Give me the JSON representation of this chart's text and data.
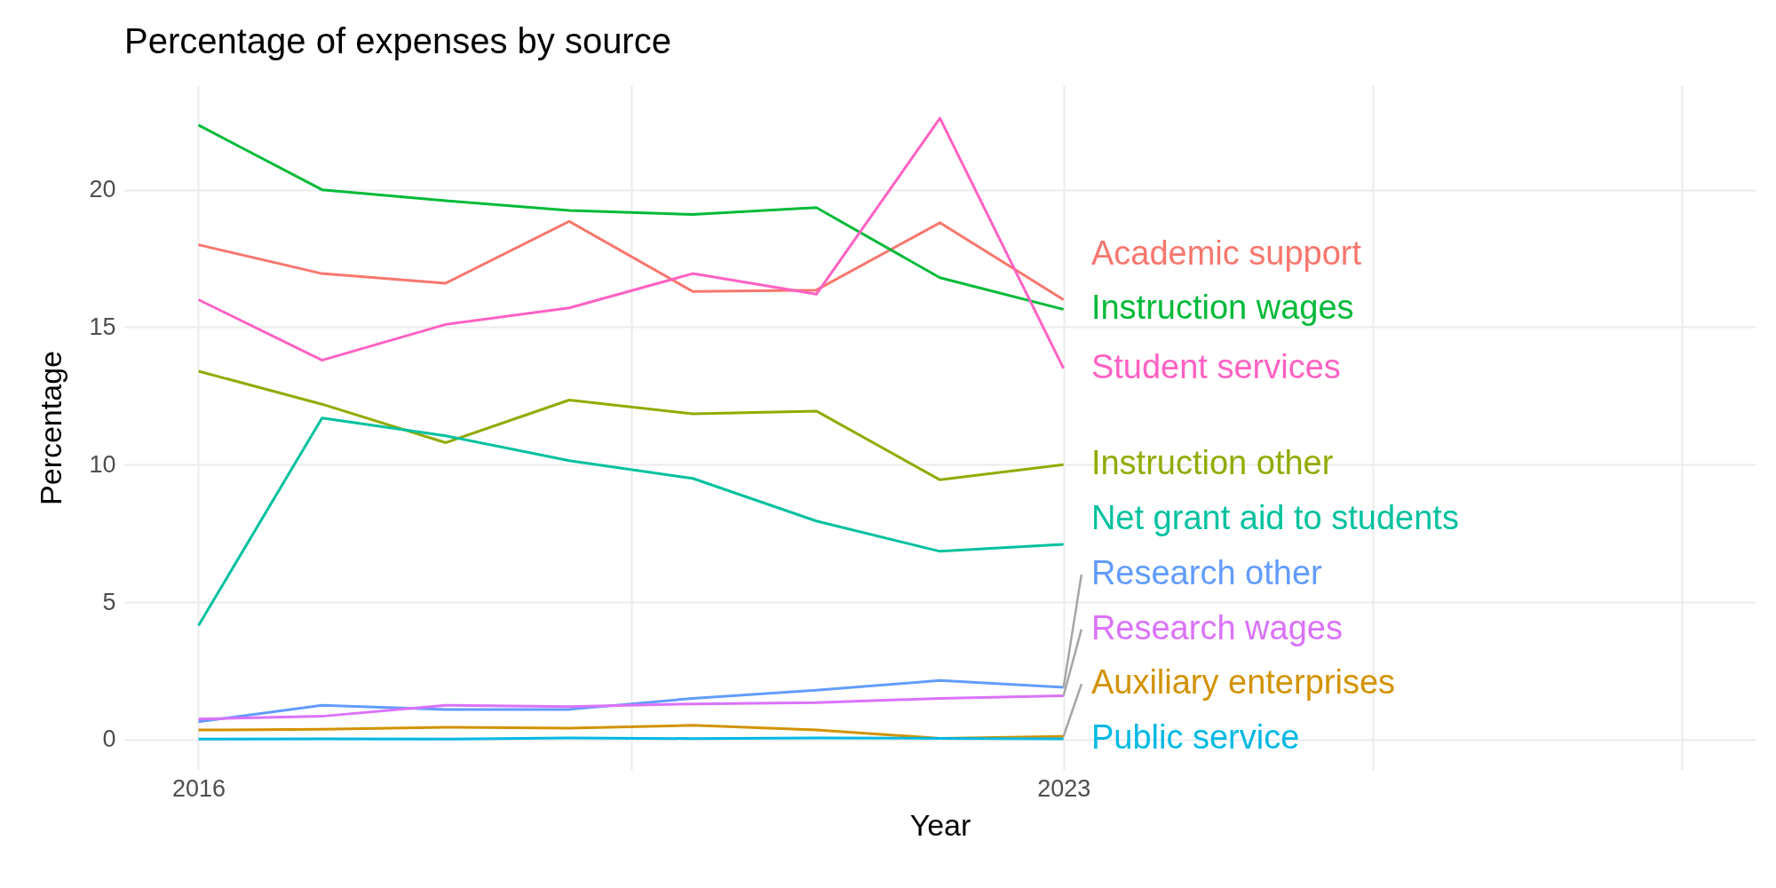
{
  "chart_data": {
    "type": "line",
    "title": "Percentage of expenses by source",
    "xlabel": "Year",
    "ylabel": "Percentage",
    "x": [
      2016,
      2017,
      2018,
      2019,
      2020,
      2021,
      2022,
      2023
    ],
    "xlim": [
      2015.4,
      2028.6
    ],
    "xticks": [
      2016,
      {
        "value": 2019.5,
        "label": null
      },
      2023,
      {
        "value": 2025.5,
        "label": null
      },
      {
        "value": 2028,
        "label": null
      }
    ],
    "ylim": [
      -1.1,
      23.8
    ],
    "yticks": [
      0,
      5,
      10,
      15,
      20
    ],
    "grid": true,
    "legend": false,
    "series": [
      {
        "name": "Academic support",
        "color": "#f8766d",
        "values": [
          18.0,
          16.95,
          16.6,
          18.85,
          16.3,
          16.35,
          18.8,
          16.0
        ]
      },
      {
        "name": "Instruction wages",
        "color": "#00ba38",
        "values": [
          22.35,
          20.0,
          19.6,
          19.25,
          19.1,
          19.35,
          16.8,
          15.65
        ]
      },
      {
        "name": "Student services",
        "color": "#ff61c3",
        "values": [
          16.0,
          13.8,
          15.1,
          15.7,
          16.95,
          16.2,
          22.6,
          13.5
        ]
      },
      {
        "name": "Instruction other",
        "color": "#93aa00",
        "values": [
          13.4,
          12.2,
          10.8,
          12.35,
          11.85,
          11.95,
          9.45,
          10.0
        ]
      },
      {
        "name": "Net grant aid to students",
        "color": "#00c19f",
        "values": [
          4.15,
          11.7,
          11.05,
          10.15,
          9.5,
          7.95,
          6.85,
          7.1
        ]
      },
      {
        "name": "Research other",
        "color": "#619cff",
        "values": [
          0.65,
          1.25,
          1.1,
          1.1,
          1.5,
          1.8,
          2.15,
          1.9
        ]
      },
      {
        "name": "Research wages",
        "color": "#db72fb",
        "values": [
          0.75,
          0.85,
          1.25,
          1.2,
          1.3,
          1.35,
          1.5,
          1.6
        ]
      },
      {
        "name": "Auxiliary enterprises",
        "color": "#d39200",
        "values": [
          0.35,
          0.38,
          0.45,
          0.42,
          0.52,
          0.35,
          0.05,
          0.12
        ]
      },
      {
        "name": "Public service",
        "color": "#00b9e3",
        "values": [
          0.02,
          0.03,
          0.02,
          0.06,
          0.04,
          0.06,
          0.05,
          0.03
        ]
      }
    ]
  }
}
